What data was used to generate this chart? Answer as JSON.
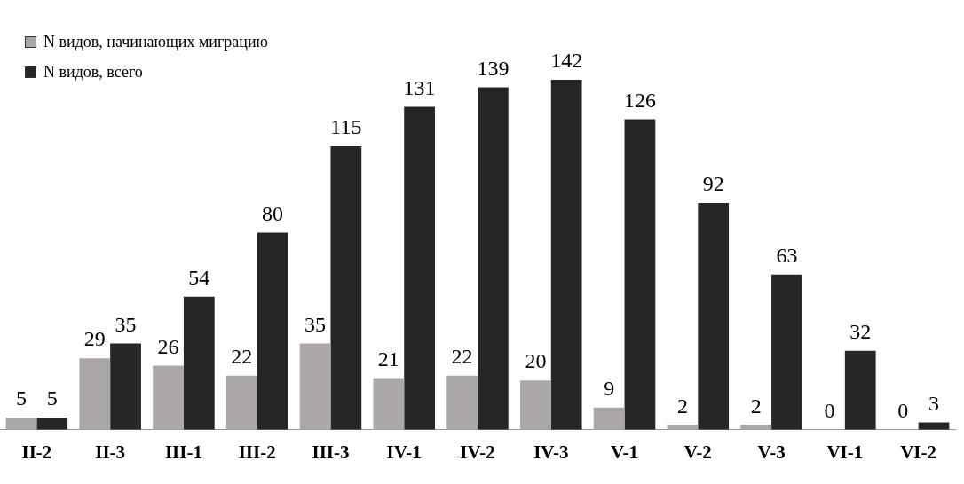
{
  "chart_data": {
    "type": "bar",
    "categories": [
      "II-2",
      "II-3",
      "III-1",
      "III-2",
      "III-3",
      "IV-1",
      "IV-2",
      "IV-3",
      "V-1",
      "V-2",
      "V-3",
      "VI-1",
      "VI-2"
    ],
    "series": [
      {
        "name": "N видов, начинающих миграцию",
        "color": "#aca7a7",
        "values": [
          5,
          29,
          26,
          22,
          35,
          21,
          22,
          20,
          9,
          2,
          2,
          0,
          0
        ]
      },
      {
        "name": "N видов, всего",
        "color": "#262626",
        "values": [
          5,
          35,
          54,
          80,
          115,
          131,
          139,
          142,
          126,
          92,
          63,
          32,
          3
        ]
      }
    ],
    "data_labels": true,
    "legend": "top left",
    "grid": false,
    "tick_labels": "x"
  }
}
